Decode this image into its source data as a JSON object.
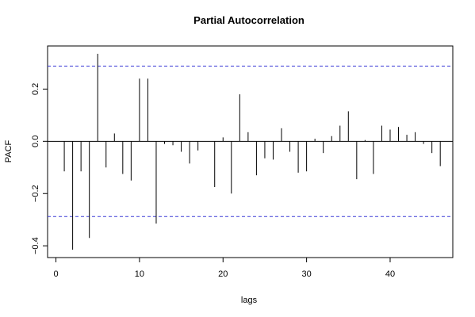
{
  "chart_data": {
    "type": "bar",
    "title": "Partial Autocorrelation",
    "xlabel": "lags",
    "ylabel": "PACF",
    "xlim": [
      -1,
      47.5
    ],
    "ylim": [
      -0.445,
      0.365
    ],
    "xticks": [
      0,
      10,
      20,
      30,
      40
    ],
    "yticks": [
      -0.4,
      -0.2,
      0.0,
      0.2
    ],
    "ytick_labels": [
      "−0.4",
      "−0.2",
      "0.0",
      "0.2"
    ],
    "conf_limits": [
      0.288,
      -0.288
    ],
    "conf_color": "#3b3bd6",
    "zero_line": true,
    "lags": [
      1,
      2,
      3,
      4,
      5,
      6,
      7,
      8,
      9,
      10,
      11,
      12,
      13,
      14,
      15,
      16,
      17,
      18,
      19,
      20,
      21,
      22,
      23,
      24,
      25,
      26,
      27,
      28,
      29,
      30,
      31,
      32,
      33,
      34,
      35,
      36,
      37,
      38,
      39,
      40,
      41,
      42,
      43,
      44,
      45,
      46
    ],
    "values": [
      -0.115,
      -0.415,
      -0.115,
      -0.37,
      0.335,
      -0.1,
      0.03,
      -0.125,
      -0.15,
      0.24,
      0.24,
      -0.315,
      -0.01,
      -0.015,
      -0.04,
      -0.085,
      -0.035,
      0.0,
      -0.175,
      0.015,
      -0.2,
      0.18,
      0.035,
      -0.13,
      -0.065,
      -0.07,
      0.05,
      -0.04,
      -0.12,
      -0.115,
      0.01,
      -0.045,
      0.02,
      0.06,
      0.115,
      -0.145,
      0.005,
      -0.125,
      0.06,
      0.045,
      0.055,
      0.025,
      0.035,
      -0.01,
      -0.045,
      -0.095
    ]
  }
}
